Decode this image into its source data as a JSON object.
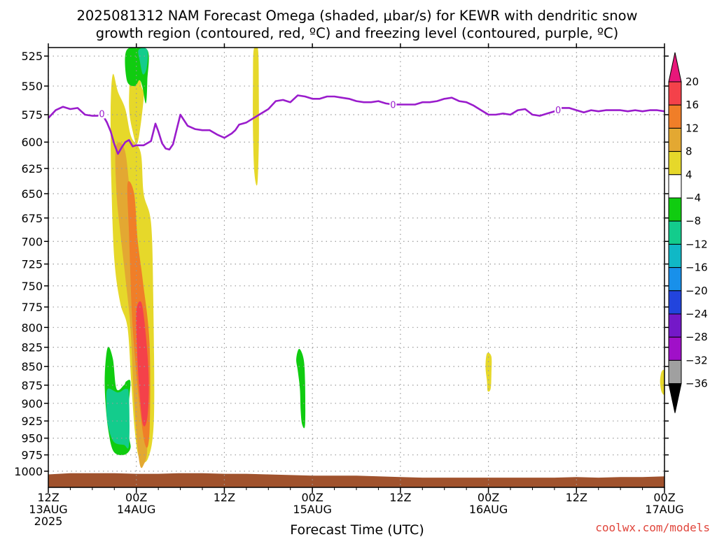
{
  "title": {
    "line1": "2025081312 NAM Forecast Omega (shaded, μbar/s) for KEWR with dendritic snow",
    "line2": "growth region (contoured, red, ºC) and freezing level (contoured, purple, ºC)"
  },
  "credit": "coolwx.com/models",
  "colors": {
    "freezing_line": "#9a1ccc",
    "terrain": "#a0522d",
    "grid": "#9a9a9a"
  },
  "chart_data": {
    "type": "heatmap",
    "xlabel": "Forecast Time (UTC)",
    "ylabel": "",
    "x_unit": "hours since 2025-08-13 12Z",
    "xlim": [
      0,
      84
    ],
    "ylim": [
      1000,
      525
    ],
    "y_ticks": [
      525,
      550,
      575,
      600,
      625,
      650,
      675,
      700,
      725,
      750,
      775,
      800,
      825,
      850,
      875,
      900,
      925,
      950,
      975,
      1000
    ],
    "x_ticks": [
      {
        "x": 0,
        "line1": "12Z",
        "line2": "13AUG",
        "line3": "2025"
      },
      {
        "x": 12,
        "line1": "00Z",
        "line2": "14AUG",
        "line3": ""
      },
      {
        "x": 24,
        "line1": "12Z",
        "line2": "",
        "line3": ""
      },
      {
        "x": 36,
        "line1": "00Z",
        "line2": "15AUG",
        "line3": ""
      },
      {
        "x": 48,
        "line1": "12Z",
        "line2": "",
        "line3": ""
      },
      {
        "x": 60,
        "line1": "00Z",
        "line2": "16AUG",
        "line3": ""
      },
      {
        "x": 72,
        "line1": "12Z",
        "line2": "",
        "line3": ""
      },
      {
        "x": 84,
        "line1": "00Z",
        "line2": "17AUG",
        "line3": ""
      }
    ],
    "grid": true,
    "colorbar": {
      "labels": [
        "20",
        "16",
        "12",
        "8",
        "4",
        "−4",
        "−8",
        "−12",
        "−16",
        "−20",
        "−24",
        "−28",
        "−32",
        "−36"
      ],
      "levels": [
        20,
        16,
        12,
        8,
        4,
        -4,
        -8,
        -12,
        -16,
        -20,
        -24,
        -28,
        -32,
        -36
      ],
      "colors": [
        "#e8177a",
        "#f4414a",
        "#f07e28",
        "#e3a832",
        "#e6d82a",
        "#ffffff",
        "#10cc10",
        "#13cc8c",
        "#10b8c6",
        "#1890ea",
        "#2244dd",
        "#7418c8",
        "#a010c8",
        "#a0a0a0",
        "#000000"
      ]
    },
    "freezing_level": {
      "label": "0",
      "x": [
        0,
        1,
        2,
        3,
        4,
        5,
        6,
        6.7,
        7.3,
        8,
        8.5,
        9,
        9.5,
        10,
        10.5,
        11,
        11.5,
        12,
        13,
        14,
        14.6,
        15,
        15.5,
        16,
        16.5,
        17,
        18,
        19,
        20,
        21,
        22,
        23,
        24,
        25,
        25.5,
        26,
        27,
        28,
        29,
        30,
        31,
        32,
        32.5,
        33,
        34,
        35,
        36,
        37,
        38,
        39,
        40,
        41,
        42,
        43,
        44,
        45,
        46,
        47,
        48,
        49,
        50,
        51,
        52,
        53,
        54,
        55,
        56,
        57,
        58,
        59,
        60,
        61,
        62,
        63,
        64,
        65,
        66,
        67,
        68,
        69,
        70,
        71,
        72,
        73,
        74,
        75,
        76,
        77,
        78,
        79,
        80,
        81,
        82,
        83,
        84
      ],
      "p": [
        578,
        571,
        568,
        570,
        569,
        575,
        576,
        576,
        574,
        582,
        590,
        602,
        611,
        605,
        600,
        598,
        604,
        603,
        603,
        599,
        583,
        590,
        601,
        606,
        607,
        602,
        575,
        585,
        588,
        589,
        589,
        593,
        596,
        592,
        589,
        584,
        582,
        578,
        574,
        570,
        563,
        562,
        563,
        564,
        558,
        559,
        561,
        561,
        559,
        559,
        560,
        561,
        563,
        564,
        564,
        563,
        565,
        566,
        566,
        566,
        566,
        564,
        564,
        563,
        561,
        560,
        563,
        564,
        567,
        571,
        575,
        575,
        574,
        575,
        571,
        570,
        575,
        576,
        574,
        572,
        569,
        569,
        571,
        573,
        571,
        572,
        571,
        571,
        571,
        572,
        571,
        572,
        571,
        571,
        572
      ]
    },
    "omega_regions": [
      {
        "level": "8 to 12",
        "color": "#e3a832",
        "polygon": [
          [
            9.2,
            605
          ],
          [
            10.3,
            605
          ],
          [
            11,
            640
          ],
          [
            12.2,
            770
          ],
          [
            13,
            860
          ],
          [
            13.5,
            960
          ],
          [
            13,
            990
          ],
          [
            12.4,
            985
          ],
          [
            11.7,
            900
          ],
          [
            11.2,
            800
          ],
          [
            10.5,
            740
          ],
          [
            9.8,
            690
          ],
          [
            9.3,
            650
          ]
        ]
      },
      {
        "level": "16 to 20",
        "color": "#f4414a",
        "polygon": [
          [
            12.0,
            780
          ],
          [
            12.7,
            770
          ],
          [
            13.3,
            810
          ],
          [
            13.7,
            870
          ],
          [
            13.5,
            920
          ],
          [
            12.9,
            930
          ],
          [
            12.4,
            880
          ],
          [
            12.1,
            830
          ]
        ]
      },
      {
        "level": "12 to 16",
        "color": "#f07e28",
        "polygon": [
          [
            10.8,
            640
          ],
          [
            11.7,
            650
          ],
          [
            12.2,
            700
          ],
          [
            12.9,
            745
          ],
          [
            13.8,
            820
          ],
          [
            13.8,
            940
          ],
          [
            13.2,
            960
          ],
          [
            12.3,
            890
          ],
          [
            11.5,
            800
          ],
          [
            11.2,
            740
          ],
          [
            11.0,
            690
          ]
        ]
      },
      {
        "level": "4 to 8",
        "color": "#e6d82a",
        "polygon": [
          [
            8.8,
            540
          ],
          [
            9.5,
            555
          ],
          [
            10.5,
            570
          ],
          [
            11.3,
            595
          ],
          [
            12.6,
            610
          ],
          [
            13.0,
            650
          ],
          [
            14.0,
            680
          ],
          [
            14.3,
            760
          ],
          [
            14.4,
            920
          ],
          [
            13.6,
            980
          ],
          [
            12.4,
            980
          ],
          [
            11.8,
            940
          ],
          [
            11.3,
            870
          ],
          [
            10.8,
            800
          ],
          [
            9.8,
            770
          ],
          [
            9.0,
            720
          ],
          [
            8.6,
            640
          ],
          [
            8.5,
            570
          ]
        ]
      },
      {
        "level": "4 to 8",
        "color": "#e6d82a",
        "polygon": [
          [
            11.4,
            520
          ],
          [
            12.0,
            530
          ],
          [
            12.7,
            550
          ],
          [
            13.0,
            560
          ],
          [
            12.2,
            600
          ],
          [
            11.5,
            590
          ],
          [
            11.0,
            565
          ]
        ]
      },
      {
        "level": "4 to 8",
        "color": "#e6d82a",
        "polygon": [
          [
            28.0,
            520
          ],
          [
            28.6,
            520
          ],
          [
            28.7,
            560
          ],
          [
            28.7,
            600
          ],
          [
            28.5,
            640
          ],
          [
            28.1,
            630
          ],
          [
            27.9,
            590
          ],
          [
            27.9,
            545
          ]
        ]
      },
      {
        "level": "-8 to -4",
        "color": "#10cc10",
        "polygon": [
          [
            10.7,
            520
          ],
          [
            13.5,
            520
          ],
          [
            13.5,
            545
          ],
          [
            13.3,
            565
          ],
          [
            12.8,
            550
          ],
          [
            12.4,
            545
          ],
          [
            11.8,
            550
          ],
          [
            10.7,
            545
          ]
        ]
      },
      {
        "level": "-12 to -8",
        "color": "#13cc8c",
        "polygon": [
          [
            12.3,
            520
          ],
          [
            13.5,
            520
          ],
          [
            13.4,
            535
          ],
          [
            12.9,
            540
          ],
          [
            12.5,
            530
          ]
        ]
      },
      {
        "level": "-8 to -4",
        "color": "#10cc10",
        "polygon": [
          [
            8.1,
            825
          ],
          [
            8.8,
            840
          ],
          [
            9.3,
            880
          ],
          [
            10.3,
            875
          ],
          [
            10.6,
            870
          ],
          [
            11.2,
            870
          ],
          [
            11.0,
            900
          ],
          [
            11.0,
            945
          ],
          [
            11.2,
            965
          ],
          [
            10.3,
            975
          ],
          [
            8.9,
            970
          ],
          [
            8.2,
            940
          ],
          [
            7.8,
            900
          ],
          [
            7.7,
            860
          ]
        ]
      },
      {
        "level": "-12 to -8",
        "color": "#13cc8c",
        "polygon": [
          [
            8.1,
            880
          ],
          [
            9.5,
            885
          ],
          [
            10.6,
            880
          ],
          [
            11.0,
            890
          ],
          [
            11.0,
            960
          ],
          [
            10.3,
            960
          ],
          [
            8.9,
            955
          ],
          [
            8.1,
            930
          ],
          [
            7.9,
            900
          ]
        ]
      },
      {
        "level": "-8 to -4",
        "color": "#10cc10",
        "polygon": [
          [
            34.2,
            827
          ],
          [
            34.8,
            840
          ],
          [
            35.0,
            870
          ],
          [
            35.0,
            930
          ],
          [
            34.6,
            930
          ],
          [
            34.4,
            910
          ],
          [
            34.3,
            880
          ],
          [
            34.0,
            855
          ],
          [
            33.8,
            840
          ]
        ]
      },
      {
        "level": "4 to 8",
        "color": "#e6d82a",
        "polygon": [
          [
            59.8,
            833
          ],
          [
            60.4,
            837
          ],
          [
            60.4,
            860
          ],
          [
            60.3,
            880
          ],
          [
            59.9,
            883
          ],
          [
            59.8,
            870
          ],
          [
            59.6,
            850
          ]
        ]
      },
      {
        "level": "4 to 8",
        "color": "#e6d82a",
        "polygon": [
          [
            83.6,
            857
          ],
          [
            84,
            857
          ],
          [
            84,
            886
          ],
          [
            83.6,
            884
          ],
          [
            83.4,
            870
          ]
        ]
      }
    ],
    "surface_terrain": {
      "x": [
        0,
        3,
        6,
        9,
        12,
        15,
        18,
        21,
        24,
        27,
        30,
        33,
        36,
        39,
        42,
        45,
        48,
        51,
        54,
        57,
        60,
        63,
        66,
        69,
        72,
        75,
        78,
        81,
        84
      ],
      "p": [
        1005,
        1003,
        1003,
        1003,
        1004,
        1004,
        1003,
        1003,
        1004,
        1004,
        1005,
        1006,
        1007,
        1007,
        1007,
        1008,
        1009,
        1010,
        1010,
        1010,
        1010,
        1010,
        1010,
        1010,
        1009,
        1010,
        1009,
        1009,
        1008
      ]
    }
  }
}
